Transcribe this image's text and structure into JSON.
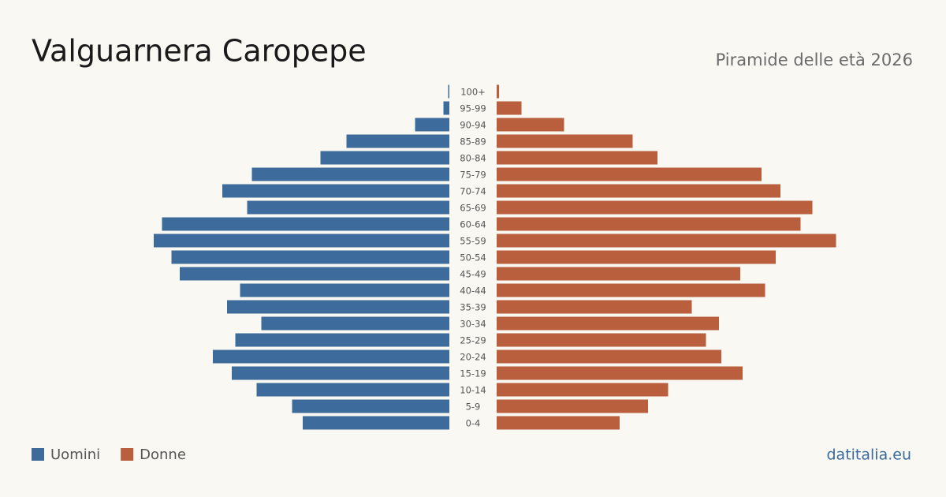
{
  "chart_data": {
    "type": "pyramid",
    "title": "Valguarnera Caropepe",
    "subtitle": "Piramide delle età 2026",
    "source": "datitalia.eu",
    "categories": [
      "100+",
      "95-99",
      "90-94",
      "85-89",
      "80-84",
      "75-79",
      "70-74",
      "65-69",
      "60-64",
      "55-59",
      "50-54",
      "45-49",
      "40-44",
      "35-39",
      "30-34",
      "25-29",
      "20-24",
      "15-19",
      "10-14",
      "5-9",
      "0-4"
    ],
    "series": [
      {
        "name": "Uomini",
        "color": "#3d6b9b",
        "values": [
          1,
          5,
          29,
          87,
          109,
          167,
          192,
          171,
          243,
          250,
          235,
          228,
          177,
          188,
          159,
          181,
          200,
          184,
          163,
          133,
          124
        ]
      },
      {
        "name": "Donne",
        "color": "#b95f3d",
        "values": [
          2,
          21,
          57,
          115,
          136,
          224,
          240,
          267,
          257,
          287,
          236,
          206,
          227,
          165,
          188,
          177,
          190,
          208,
          145,
          128,
          104
        ]
      }
    ],
    "xlim": [
      0,
      300
    ]
  }
}
